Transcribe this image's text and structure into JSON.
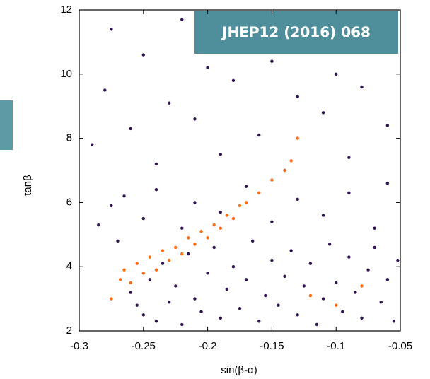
{
  "chart_data": {
    "type": "scatter",
    "badge": "JHEP12 (2016) 068",
    "x_label": "sin(β-α)",
    "y_label": "tanβ",
    "xlim": [
      -0.3,
      -0.05
    ],
    "ylim": [
      2,
      12
    ],
    "xticks": [
      -0.3,
      -0.25,
      -0.2,
      -0.15,
      -0.1,
      -0.05
    ],
    "yticks": [
      2,
      4,
      6,
      8,
      10,
      12
    ],
    "series": [
      {
        "color": "#2e1450",
        "x": [
          -0.26,
          -0.255,
          -0.25,
          -0.245,
          -0.24,
          -0.235,
          -0.23,
          -0.225,
          -0.22,
          -0.215,
          -0.21,
          -0.205,
          -0.2,
          -0.195,
          -0.19,
          -0.185,
          -0.18,
          -0.175,
          -0.17,
          -0.165,
          -0.16,
          -0.155,
          -0.15,
          -0.145,
          -0.14,
          -0.135,
          -0.13,
          -0.125,
          -0.12,
          -0.115,
          -0.11,
          -0.105,
          -0.1,
          -0.095,
          -0.09,
          -0.085,
          -0.08,
          -0.075,
          -0.07,
          -0.065,
          -0.06,
          -0.055,
          -0.052,
          -0.285,
          -0.275,
          -0.27,
          -0.265,
          -0.25,
          -0.24,
          -0.22,
          -0.21,
          -0.19,
          -0.17,
          -0.15,
          -0.13,
          -0.11,
          -0.09,
          -0.07,
          -0.06,
          -0.29,
          -0.28,
          -0.275,
          -0.26,
          -0.25,
          -0.24,
          -0.23,
          -0.22,
          -0.21,
          -0.2,
          -0.19,
          -0.18,
          -0.17,
          -0.16,
          -0.15,
          -0.14,
          -0.13,
          -0.12,
          -0.11,
          -0.1,
          -0.09,
          -0.08,
          -0.07,
          -0.06,
          -0.055
        ],
        "values": [
          3.2,
          2.8,
          2.5,
          3.6,
          2.3,
          4.1,
          2.9,
          3.4,
          2.2,
          4.4,
          3.0,
          2.6,
          3.8,
          4.6,
          2.4,
          3.3,
          4.0,
          2.7,
          3.6,
          4.8,
          2.3,
          3.1,
          4.2,
          2.8,
          3.7,
          4.5,
          2.5,
          3.4,
          4.1,
          2.2,
          3.0,
          4.7,
          3.5,
          2.6,
          4.3,
          3.2,
          2.4,
          3.9,
          4.6,
          2.9,
          3.6,
          2.3,
          4.2,
          5.3,
          5.9,
          4.8,
          6.2,
          5.5,
          6.4,
          5.2,
          6.0,
          5.7,
          6.5,
          5.4,
          6.1,
          5.6,
          6.3,
          5.2,
          6.6,
          7.8,
          9.5,
          11.4,
          8.3,
          10.6,
          7.2,
          9.1,
          11.7,
          8.6,
          10.2,
          7.5,
          9.8,
          11.1,
          8.1,
          10.4,
          7.0,
          9.3,
          11.5,
          8.8,
          10.0,
          7.4,
          9.6,
          11.0,
          8.4,
          10.8
        ]
      },
      {
        "color": "#ff6a10",
        "x": [
          -0.268,
          -0.265,
          -0.26,
          -0.255,
          -0.25,
          -0.245,
          -0.24,
          -0.235,
          -0.23,
          -0.225,
          -0.22,
          -0.215,
          -0.21,
          -0.205,
          -0.2,
          -0.195,
          -0.19,
          -0.185,
          -0.18,
          -0.175,
          -0.17,
          -0.16,
          -0.15,
          -0.14,
          -0.135,
          -0.13,
          -0.12,
          -0.1,
          -0.08,
          -0.275
        ],
        "values": [
          3.6,
          3.9,
          3.5,
          4.1,
          3.8,
          4.3,
          3.9,
          4.5,
          4.2,
          4.6,
          4.4,
          4.9,
          4.7,
          5.1,
          4.9,
          5.3,
          5.2,
          5.6,
          5.5,
          5.9,
          6.0,
          6.3,
          6.7,
          7.0,
          7.3,
          8.0,
          3.1,
          2.8,
          3.4,
          3.0
        ]
      }
    ]
  }
}
